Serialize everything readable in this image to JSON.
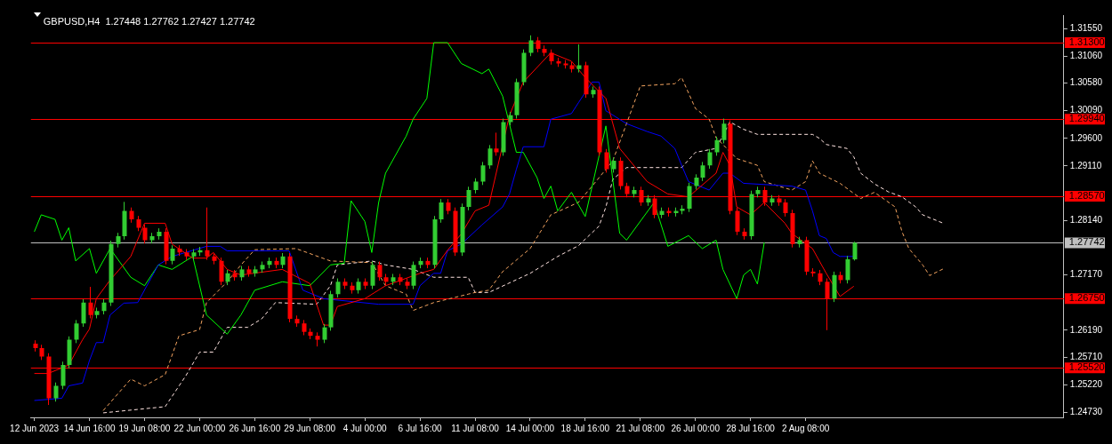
{
  "chart_data": {
    "type": "candlestick",
    "title": "GBPUSD,H4  1.27448 1.27762 1.27427 1.27742",
    "marker": "none",
    "categories": [
      "12 Jun 2023",
      null,
      null,
      null,
      null,
      null,
      null,
      null,
      "14 Jun 16:00",
      null,
      null,
      null,
      null,
      null,
      null,
      null,
      "19 Jun 08:00",
      null,
      null,
      null,
      null,
      null,
      null,
      null,
      "22 Jun 00:00",
      null,
      null,
      null,
      null,
      null,
      null,
      null,
      "26 Jun 16:00",
      null,
      null,
      null,
      null,
      null,
      null,
      null,
      "29 Jun 08:00",
      null,
      null,
      null,
      null,
      null,
      null,
      null,
      "4 Jul 00:00",
      null,
      null,
      null,
      null,
      null,
      null,
      null,
      "6 Jul 16:00",
      null,
      null,
      null,
      null,
      null,
      null,
      null,
      "11 Jul 08:00",
      null,
      null,
      null,
      null,
      null,
      null,
      null,
      "14 Jul 00:00",
      null,
      null,
      null,
      null,
      null,
      null,
      null,
      "18 Jul 16:00",
      null,
      null,
      null,
      null,
      null,
      null,
      null,
      "21 Jul 08:00",
      null,
      null,
      null,
      null,
      null,
      null,
      null,
      "26 Jul 00:00",
      null,
      null,
      null,
      null,
      null,
      null,
      null,
      "28 Jul 16:00",
      null,
      null,
      null,
      null,
      null,
      null,
      null,
      "2 Aug 08:00",
      null,
      null,
      null,
      null,
      null,
      null,
      null,
      null,
      null,
      null,
      null,
      null,
      null,
      null,
      null,
      null,
      null,
      null,
      null,
      null,
      null,
      null,
      null,
      null,
      null,
      null,
      null,
      null,
      null,
      null,
      null,
      null,
      null,
      null,
      null,
      null,
      null
    ],
    "ylim": [
      1.2464,
      1.3179
    ],
    "yticks": [
      {
        "value": 1.3155,
        "label": "1.31550"
      },
      {
        "value": 1.3106,
        "label": "1.31060"
      },
      {
        "value": 1.3058,
        "label": "1.30580"
      },
      {
        "value": 1.3009,
        "label": "1.30090"
      },
      {
        "value": 1.296,
        "label": "1.29600"
      },
      {
        "value": 1.2911,
        "label": "1.29110"
      },
      {
        "value": 1.2814,
        "label": "1.28140"
      },
      {
        "value": 1.2717,
        "label": "1.27170"
      },
      {
        "value": 1.2619,
        "label": "1.26190"
      },
      {
        "value": 1.2571,
        "label": "1.25710"
      },
      {
        "value": 1.2522,
        "label": "1.25220"
      },
      {
        "value": 1.2473,
        "label": "1.24730"
      }
    ],
    "ref_lines": [
      {
        "axis": "y",
        "value": 1.313,
        "label": "1.31300",
        "color": "#ff0000"
      },
      {
        "axis": "y",
        "value": 1.2994,
        "label": "1.29940",
        "color": "#ff0000"
      },
      {
        "axis": "y",
        "value": 1.2857,
        "label": "1.28570",
        "color": "#ff0000"
      },
      {
        "axis": "y",
        "value": 1.2675,
        "label": "1.26750",
        "color": "#ff0000"
      },
      {
        "axis": "y",
        "value": 1.2552,
        "label": "1.25520",
        "color": "#ff0000"
      },
      {
        "axis": "y",
        "value": 1.27742,
        "label": "1.27742",
        "color": "#c0c0c0"
      }
    ],
    "ohlc": [
      [
        1.2595,
        1.2601,
        1.2581,
        1.2587
      ],
      [
        1.2587,
        1.2593,
        1.2566,
        1.2572
      ],
      [
        1.2572,
        1.2578,
        1.2486,
        1.2498
      ],
      [
        1.2498,
        1.2526,
        1.2492,
        1.252
      ],
      [
        1.252,
        1.2563,
        1.2514,
        1.2557
      ],
      [
        1.2557,
        1.2608,
        1.2551,
        1.2602
      ],
      [
        1.2602,
        1.2637,
        1.2596,
        1.2631
      ],
      [
        1.2631,
        1.2674,
        1.2625,
        1.2668
      ],
      [
        1.2668,
        1.2696,
        1.264,
        1.2646
      ],
      [
        1.2646,
        1.2659,
        1.264,
        1.2653
      ],
      [
        1.2653,
        1.2674,
        1.2647,
        1.2668
      ],
      [
        1.2668,
        1.2778,
        1.2662,
        1.2772
      ],
      [
        1.2772,
        1.2792,
        1.2766,
        1.2786
      ],
      [
        1.2786,
        1.2847,
        1.278,
        1.2831
      ],
      [
        1.2831,
        1.2837,
        1.281,
        1.2816
      ],
      [
        1.2816,
        1.2822,
        1.2795,
        1.2801
      ],
      [
        1.2801,
        1.2807,
        1.2773,
        1.2779
      ],
      [
        1.2779,
        1.2792,
        1.2773,
        1.2786
      ],
      [
        1.2786,
        1.28,
        1.278,
        1.2794
      ],
      [
        1.2794,
        1.28,
        1.2736,
        1.2742
      ],
      [
        1.2742,
        1.277,
        1.2736,
        1.2764
      ],
      [
        1.2764,
        1.277,
        1.2751,
        1.2757
      ],
      [
        1.2757,
        1.2763,
        1.2744,
        1.275
      ],
      [
        1.275,
        1.2763,
        1.2744,
        1.2757
      ],
      [
        1.2757,
        1.2767,
        1.2751,
        1.2761
      ],
      [
        1.2761,
        1.2837,
        1.2744,
        1.275
      ],
      [
        1.275,
        1.2756,
        1.2736,
        1.2742
      ],
      [
        1.2742,
        1.2748,
        1.2699,
        1.2705
      ],
      [
        1.2705,
        1.2726,
        1.2699,
        1.272
      ],
      [
        1.272,
        1.2726,
        1.2707,
        1.2713
      ],
      [
        1.2713,
        1.2733,
        1.2707,
        1.2727
      ],
      [
        1.2727,
        1.2733,
        1.2714,
        1.272
      ],
      [
        1.272,
        1.2733,
        1.2714,
        1.2727
      ],
      [
        1.2727,
        1.2741,
        1.2721,
        1.2735
      ],
      [
        1.2735,
        1.2748,
        1.2729,
        1.2742
      ],
      [
        1.2742,
        1.2748,
        1.2729,
        1.2735
      ],
      [
        1.2735,
        1.2756,
        1.2729,
        1.275
      ],
      [
        1.275,
        1.2756,
        1.2633,
        1.2639
      ],
      [
        1.2639,
        1.2645,
        1.2625,
        1.2631
      ],
      [
        1.2631,
        1.2637,
        1.261,
        1.2616
      ],
      [
        1.2616,
        1.2622,
        1.2603,
        1.2609
      ],
      [
        1.2609,
        1.2615,
        1.259,
        1.2602
      ],
      [
        1.2602,
        1.263,
        1.2596,
        1.2624
      ],
      [
        1.2624,
        1.2689,
        1.2618,
        1.2683
      ],
      [
        1.2683,
        1.2711,
        1.2677,
        1.2705
      ],
      [
        1.2705,
        1.2711,
        1.2692,
        1.2698
      ],
      [
        1.2698,
        1.2704,
        1.2684,
        1.269
      ],
      [
        1.269,
        1.2711,
        1.2684,
        1.2705
      ],
      [
        1.2705,
        1.2711,
        1.2692,
        1.2698
      ],
      [
        1.2698,
        1.2741,
        1.2692,
        1.2735
      ],
      [
        1.2735,
        1.2741,
        1.2707,
        1.2713
      ],
      [
        1.2713,
        1.2719,
        1.2699,
        1.2705
      ],
      [
        1.2705,
        1.2719,
        1.2699,
        1.2713
      ],
      [
        1.2713,
        1.2719,
        1.2699,
        1.2705
      ],
      [
        1.2705,
        1.2711,
        1.2692,
        1.2698
      ],
      [
        1.2698,
        1.2741,
        1.2692,
        1.2735
      ],
      [
        1.2735,
        1.2748,
        1.2729,
        1.2742
      ],
      [
        1.2742,
        1.2748,
        1.2729,
        1.2735
      ],
      [
        1.2735,
        1.2822,
        1.2729,
        1.2816
      ],
      [
        1.2816,
        1.2852,
        1.281,
        1.2846
      ],
      [
        1.2846,
        1.2852,
        1.2825,
        1.2831
      ],
      [
        1.2831,
        1.2837,
        1.2751,
        1.2757
      ],
      [
        1.2757,
        1.2844,
        1.2751,
        1.2838
      ],
      [
        1.2838,
        1.2874,
        1.2832,
        1.2868
      ],
      [
        1.2868,
        1.2889,
        1.2862,
        1.2883
      ],
      [
        1.2883,
        1.2918,
        1.2877,
        1.2912
      ],
      [
        1.2912,
        1.2948,
        1.2906,
        1.2942
      ],
      [
        1.2942,
        1.297,
        1.2929,
        1.2935
      ],
      [
        1.2935,
        1.2995,
        1.2929,
        1.2989
      ],
      [
        1.2989,
        1.3007,
        1.2983,
        1.3001
      ],
      [
        1.3001,
        1.3066,
        1.2995,
        1.306
      ],
      [
        1.306,
        1.3118,
        1.3054,
        1.3112
      ],
      [
        1.3112,
        1.3143,
        1.3106,
        1.3134
      ],
      [
        1.3134,
        1.314,
        1.3113,
        1.3119
      ],
      [
        1.3119,
        1.3125,
        1.3106,
        1.3112
      ],
      [
        1.3112,
        1.3118,
        1.3091,
        1.3097
      ],
      [
        1.3097,
        1.3103,
        1.3087,
        1.3093
      ],
      [
        1.3093,
        1.3099,
        1.3084,
        1.309
      ],
      [
        1.309,
        1.3096,
        1.3077,
        1.3083
      ],
      [
        1.3083,
        1.3127,
        1.3077,
        1.309
      ],
      [
        1.309,
        1.3096,
        1.3032,
        1.3038
      ],
      [
        1.3038,
        1.3052,
        1.3032,
        1.3046
      ],
      [
        1.3046,
        1.3052,
        1.2929,
        1.2935
      ],
      [
        1.2935,
        1.2941,
        1.2899,
        1.2905
      ],
      [
        1.2905,
        1.2926,
        1.2899,
        1.292
      ],
      [
        1.292,
        1.2926,
        1.2869,
        1.2875
      ],
      [
        1.2875,
        1.2881,
        1.2855,
        1.2861
      ],
      [
        1.2861,
        1.2874,
        1.2855,
        1.2868
      ],
      [
        1.2868,
        1.2874,
        1.284,
        1.2846
      ],
      [
        1.2846,
        1.2859,
        1.284,
        1.2853
      ],
      [
        1.2853,
        1.2859,
        1.2818,
        1.2824
      ],
      [
        1.2824,
        1.2837,
        1.2818,
        1.2831
      ],
      [
        1.2831,
        1.2837,
        1.2821,
        1.2827
      ],
      [
        1.2827,
        1.2837,
        1.2821,
        1.2831
      ],
      [
        1.2831,
        1.2841,
        1.2825,
        1.2835
      ],
      [
        1.2835,
        1.2881,
        1.2829,
        1.2875
      ],
      [
        1.2875,
        1.2896,
        1.2869,
        1.289
      ],
      [
        1.289,
        1.2918,
        1.2884,
        1.2912
      ],
      [
        1.2912,
        1.2941,
        1.2906,
        1.2935
      ],
      [
        1.2935,
        1.2963,
        1.2929,
        1.2957
      ],
      [
        1.2957,
        1.2995,
        1.2951,
        1.2986
      ],
      [
        1.2986,
        1.2992,
        1.2825,
        1.2831
      ],
      [
        1.2831,
        1.2837,
        1.2788,
        1.2794
      ],
      [
        1.2794,
        1.28,
        1.278,
        1.2786
      ],
      [
        1.2786,
        1.2867,
        1.278,
        1.2861
      ],
      [
        1.2861,
        1.2874,
        1.2855,
        1.2868
      ],
      [
        1.2868,
        1.2874,
        1.284,
        1.2846
      ],
      [
        1.2846,
        1.2859,
        1.284,
        1.2853
      ],
      [
        1.2853,
        1.2859,
        1.284,
        1.2846
      ],
      [
        1.2846,
        1.2852,
        1.2821,
        1.2827
      ],
      [
        1.2827,
        1.2833,
        1.2766,
        1.2772
      ],
      [
        1.2772,
        1.2785,
        1.2766,
        1.2779
      ],
      [
        1.2779,
        1.2785,
        1.2717,
        1.2723
      ],
      [
        1.2723,
        1.2729,
        1.2714,
        1.272
      ],
      [
        1.272,
        1.2726,
        1.2699,
        1.2705
      ],
      [
        1.2705,
        1.2711,
        1.2619,
        1.2675
      ],
      [
        1.2675,
        1.2723,
        1.2669,
        1.2717
      ],
      [
        1.2717,
        1.2723,
        1.2702,
        1.2708
      ],
      [
        1.2708,
        1.2751,
        1.2702,
        1.2745
      ],
      [
        1.27448,
        1.27762,
        1.27427,
        1.27742
      ],
      null,
      null,
      null,
      null,
      null,
      null,
      null,
      null,
      null,
      null,
      null,
      null,
      null,
      null,
      null,
      null,
      null,
      null,
      null,
      null,
      null,
      null,
      null,
      null,
      null,
      null,
      null,
      null,
      null,
      null
    ],
    "series": [
      {
        "type": "line",
        "color": "#ff0000",
        "line_style": "solid",
        "values": [
          1.2542,
          null,
          1.2542,
          null,
          null,
          1.2557,
          null,
          1.2602,
          1.2621,
          1.2675,
          null,
          1.2708,
          null,
          null,
          1.275,
          null,
          1.2809,
          null,
          null,
          1.2809,
          1.2772,
          null,
          null,
          1.2747,
          null,
          1.2747,
          1.2757,
          null,
          1.2727,
          null,
          1.2717,
          null,
          null,
          null,
          null,
          null,
          1.2727,
          null,
          null,
          null,
          1.2702,
          null,
          1.2628,
          1.2628,
          1.2661,
          null,
          null,
          null,
          1.2675,
          null,
          null,
          1.2698,
          null,
          null,
          null,
          null,
          1.272,
          null,
          1.2727,
          null,
          1.2761,
          null,
          1.279,
          null,
          1.2831,
          null,
          1.2841,
          null,
          null,
          1.3001,
          null,
          1.306,
          null,
          null,
          null,
          1.3112,
          null,
          null,
          1.3097,
          null,
          1.3068,
          null,
          null,
          1.3031,
          null,
          1.2942,
          null,
          null,
          null,
          1.2883,
          null,
          null,
          1.2861,
          null,
          null,
          1.2856,
          null,
          null,
          null,
          1.2898,
          1.2935,
          1.2912,
          1.2838,
          null,
          1.2824,
          null,
          1.2846,
          null,
          null,
          1.2809,
          1.2791,
          null,
          null,
          1.2764,
          null,
          1.272,
          null,
          1.2679,
          null,
          1.2697,
          null,
          null,
          null,
          null,
          null,
          null,
          null,
          null,
          null,
          null,
          null,
          null,
          null,
          null,
          null,
          null,
          null,
          null,
          null,
          null,
          null,
          null,
          null,
          null,
          null,
          null,
          null,
          null,
          null,
          null
        ]
      },
      {
        "type": "line",
        "color": "#0000ff",
        "line_style": "solid",
        "values": [
          1.2494,
          null,
          null,
          null,
          1.2498,
          1.252,
          null,
          1.2525,
          1.2565,
          1.2597,
          1.2597,
          1.2646,
          null,
          1.2667,
          null,
          1.2668,
          null,
          null,
          1.2735,
          null,
          1.275,
          null,
          null,
          null,
          null,
          1.2768,
          null,
          1.2768,
          1.276,
          null,
          null,
          null,
          null,
          null,
          null,
          null,
          null,
          1.276,
          null,
          1.269,
          null,
          null,
          1.2675,
          null,
          null,
          null,
          null,
          null,
          null,
          null,
          1.2665,
          null,
          null,
          null,
          null,
          1.2665,
          1.2698,
          null,
          1.272,
          1.272,
          1.276,
          null,
          1.2772,
          null,
          null,
          1.2806,
          null,
          null,
          1.2838,
          1.2861,
          1.2905,
          1.2945,
          null,
          null,
          1.2945,
          1.2994,
          null,
          null,
          1.3004,
          1.3023,
          null,
          1.306,
          1.306,
          1.3009,
          null,
          null,
          1.2986,
          null,
          null,
          1.2972,
          null,
          1.2964,
          null,
          1.2942,
          1.2912,
          1.2883,
          null,
          null,
          1.2868,
          null,
          1.2898,
          1.2898,
          null,
          1.288,
          null,
          null,
          null,
          null,
          null,
          null,
          1.2875,
          null,
          1.2868,
          1.2831,
          1.2787,
          1.2782,
          1.2757,
          1.275,
          null,
          1.275,
          null,
          null,
          null,
          null,
          null,
          null,
          null,
          null,
          null,
          null,
          null,
          null,
          null,
          null,
          null,
          null,
          null,
          null,
          null,
          null,
          null,
          null,
          null,
          null,
          null,
          null,
          null,
          null,
          null,
          null
        ]
      },
      {
        "type": "line",
        "color": "#00ff00",
        "line_style": "solid",
        "values": [
          1.2794,
          1.2824,
          null,
          1.2816,
          1.2779,
          1.2801,
          1.2742,
          null,
          1.2764,
          1.272,
          null,
          1.2764,
          null,
          null,
          1.2713,
          null,
          1.2698,
          null,
          1.2735,
          null,
          1.2727,
          null,
          null,
          1.275,
          null,
          1.2646,
          null,
          null,
          1.2612,
          null,
          1.2646,
          null,
          1.269,
          null,
          null,
          null,
          1.2705,
          null,
          null,
          null,
          1.2698,
          null,
          null,
          1.2735,
          null,
          1.2738,
          1.2849,
          null,
          1.2812,
          1.2757,
          1.2846,
          1.2898,
          null,
          null,
          1.2964,
          1.2994,
          null,
          1.3031,
          1.313,
          null,
          1.313,
          null,
          1.3093,
          null,
          null,
          1.3075,
          1.3083,
          null,
          1.3035,
          null,
          1.2935,
          1.2935,
          null,
          1.289,
          1.2853,
          1.2875,
          1.2831,
          null,
          1.2864,
          null,
          1.2821,
          null,
          null,
          1.2982,
          null,
          1.2791,
          1.2779,
          null,
          null,
          null,
          1.2846,
          null,
          1.2768,
          null,
          null,
          1.2787,
          null,
          1.2764,
          null,
          1.2779,
          1.2727,
          null,
          1.2675,
          1.2717,
          1.2727,
          1.2701,
          1.2775,
          null,
          null,
          null,
          null,
          null,
          null,
          null,
          null,
          null,
          null,
          null,
          null,
          null,
          null,
          null,
          null,
          null,
          null,
          null,
          null,
          null,
          null,
          null,
          null,
          null,
          null,
          null,
          null,
          null,
          null,
          null,
          null,
          null,
          null,
          null,
          null,
          null,
          null,
          null,
          null,
          null,
          null,
          null
        ]
      },
      {
        "type": "line",
        "color": "#f4a460",
        "line_style": "dashed",
        "values": [
          null,
          null,
          null,
          null,
          null,
          null,
          null,
          null,
          null,
          null,
          1.2476,
          null,
          null,
          null,
          1.2532,
          null,
          1.252,
          null,
          null,
          1.254,
          null,
          1.2609,
          null,
          null,
          1.262,
          1.2668,
          null,
          null,
          1.2705,
          null,
          1.2735,
          null,
          1.2762,
          null,
          null,
          null,
          null,
          null,
          1.2764,
          null,
          null,
          null,
          null,
          1.2742,
          null,
          null,
          null,
          null,
          null,
          1.2739,
          null,
          1.2698,
          null,
          null,
          1.2683,
          1.2654,
          null,
          null,
          1.2668,
          null,
          null,
          null,
          null,
          1.2683,
          1.2686,
          null,
          1.269,
          null,
          1.2723,
          null,
          null,
          null,
          1.2764,
          null,
          null,
          1.2824,
          null,
          null,
          null,
          1.2846,
          null,
          1.2875,
          null,
          null,
          1.292,
          null,
          1.2986,
          null,
          1.3053,
          null,
          null,
          null,
          null,
          1.3057,
          1.3068,
          null,
          1.3013,
          null,
          1.2994,
          1.2961,
          null,
          null,
          1.2924,
          null,
          null,
          1.2912,
          1.2883,
          null,
          null,
          null,
          1.2868,
          null,
          1.2883,
          1.292,
          1.2898,
          null,
          null,
          1.288,
          null,
          null,
          1.2853,
          null,
          1.2864,
          null,
          null,
          1.2838,
          1.2794,
          1.2764,
          null,
          1.2735,
          1.2716,
          null,
          1.2728,
          null,
          null,
          null,
          null,
          null,
          null,
          null,
          null,
          null,
          null,
          null,
          null,
          null,
          null,
          null,
          null,
          null
        ]
      },
      {
        "type": "line",
        "color": "#ffe4e1",
        "line_style": "dashed",
        "values": [
          null,
          null,
          null,
          null,
          null,
          null,
          null,
          null,
          null,
          null,
          1.2472,
          null,
          null,
          null,
          null,
          null,
          null,
          null,
          null,
          1.2483,
          null,
          null,
          1.2538,
          null,
          1.258,
          null,
          1.258,
          null,
          1.2624,
          null,
          null,
          1.2624,
          null,
          1.2639,
          null,
          1.2668,
          null,
          null,
          null,
          null,
          null,
          1.2665,
          null,
          1.2698,
          1.2735,
          null,
          null,
          null,
          null,
          1.2742,
          null,
          1.2735,
          null,
          null,
          null,
          1.2727,
          null,
          null,
          1.2713,
          null,
          null,
          null,
          null,
          1.2713,
          1.2686,
          null,
          1.2686,
          null,
          null,
          null,
          null,
          null,
          1.272,
          null,
          null,
          null,
          1.275,
          null,
          null,
          1.2769,
          null,
          null,
          1.2804,
          1.2838,
          1.2887,
          null,
          1.2908,
          null,
          null,
          null,
          null,
          null,
          null,
          null,
          1.2908,
          null,
          1.2935,
          null,
          null,
          1.2942,
          null,
          1.2989,
          null,
          1.2976,
          null,
          1.2967,
          null,
          null,
          null,
          null,
          null,
          null,
          null,
          1.2967,
          1.296,
          1.2949,
          null,
          null,
          1.2942,
          1.2927,
          1.2898,
          null,
          1.2879,
          null,
          1.2865,
          null,
          1.2856,
          null,
          1.2838,
          1.2824,
          null,
          null,
          1.2809,
          null,
          null,
          null,
          null,
          null,
          null,
          null,
          null,
          null,
          null,
          null,
          null,
          null,
          null,
          null,
          null,
          null
        ]
      }
    ]
  }
}
